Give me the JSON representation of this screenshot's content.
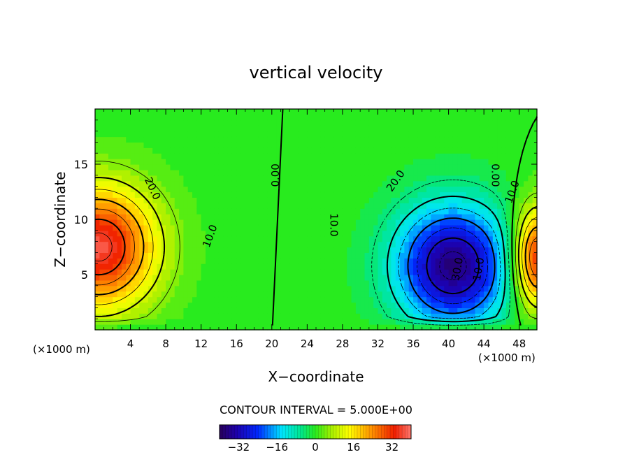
{
  "chart_data": {
    "type": "heatmap",
    "title": "vertical velocity",
    "xlabel": "X−coordinate",
    "ylabel": "Z−coordinate",
    "x_unit_left": "(×1000 m)",
    "x_unit_right": "(×1000 m)",
    "xlim": [
      0,
      50
    ],
    "ylim": [
      0,
      20
    ],
    "x_ticks": [
      4,
      8,
      12,
      16,
      20,
      24,
      28,
      32,
      36,
      40,
      44,
      48
    ],
    "y_ticks": [
      5,
      10,
      15
    ],
    "x_tick_labels": [
      "4",
      "8",
      "12",
      "16",
      "20",
      "24",
      "28",
      "32",
      "36",
      "40",
      "44",
      "48"
    ],
    "y_tick_labels": [
      "5",
      "10",
      "15"
    ],
    "contour_interval_text": "CONTOUR INTERVAL = 5.000E+00",
    "contour_labels": [
      {
        "text": "20.0",
        "x": 6.5,
        "z": 12.8,
        "rot": 65
      },
      {
        "text": "10.0",
        "x": 13.0,
        "z": 8.5,
        "rot": -70
      },
      {
        "text": "0.00",
        "x": 20.4,
        "z": 14.0,
        "rot": -90
      },
      {
        "text": "10.0",
        "x": 27.0,
        "z": 9.5,
        "rot": 90
      },
      {
        "text": "20.0",
        "x": 34.0,
        "z": 13.5,
        "rot": -55
      },
      {
        "text": "30.0",
        "x": 41.0,
        "z": 5.5,
        "rot": -80
      },
      {
        "text": "10.0",
        "x": 43.4,
        "z": 5.5,
        "rot": -80
      },
      {
        "text": "0.00",
        "x": 45.3,
        "z": 14.0,
        "rot": 90
      },
      {
        "text": "10.0",
        "x": 47.2,
        "z": 12.5,
        "rot": -70
      }
    ],
    "field": {
      "description": "vertical velocity w(x,z)",
      "background": 0,
      "centers": [
        {
          "x": 0.4,
          "z": 7.5,
          "amp": 37,
          "sx": 6.5,
          "sz": 5.5
        },
        {
          "x": 40.5,
          "z": 5.8,
          "amp": -37,
          "sx": 6.5,
          "sz": 5.5
        },
        {
          "x": 50.0,
          "z": 6.5,
          "amp": 34,
          "sx": 2.8,
          "sz": 4.5
        }
      ]
    },
    "colorbar": {
      "range": [
        -40,
        40
      ],
      "ticks": [
        -32,
        -16,
        0,
        16,
        32
      ],
      "tick_labels": [
        "−32",
        "−16",
        "0",
        "16",
        "32"
      ]
    },
    "grid": false
  }
}
